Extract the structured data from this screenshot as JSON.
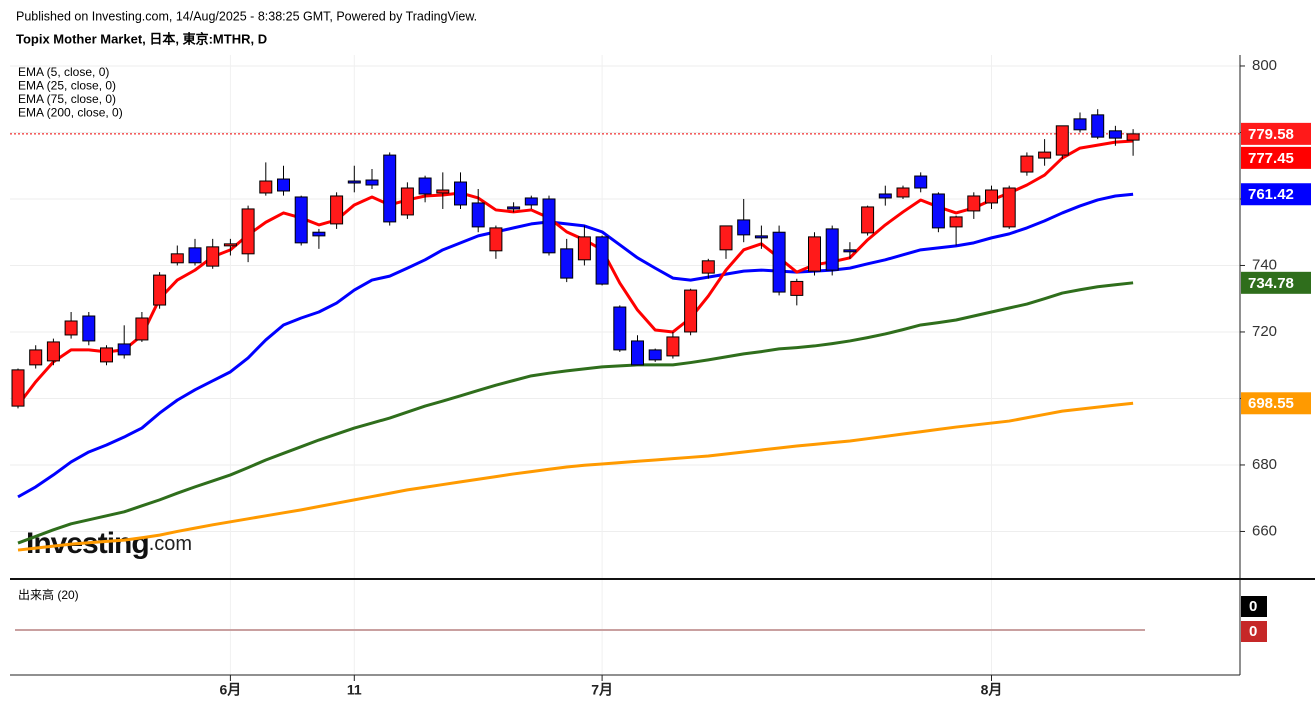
{
  "chart_data": {
    "type": "candlestick",
    "header": "Published on Investing.com, 14/Aug/2025 - 8:38:25 GMT, Powered by TradingView.",
    "title": "Topix Mother Market, 日本, 東京:MTHR, D",
    "watermark_main": "Investing",
    "watermark_suffix": ".com",
    "categories": [
      null,
      null,
      null,
      null,
      null,
      null,
      null,
      null,
      null,
      null,
      null,
      null,
      "6月",
      null,
      null,
      null,
      null,
      null,
      null,
      "11",
      null,
      null,
      null,
      null,
      null,
      null,
      null,
      null,
      null,
      null,
      null,
      null,
      null,
      "7月",
      null,
      null,
      null,
      null,
      null,
      null,
      null,
      null,
      null,
      null,
      null,
      null,
      null,
      null,
      null,
      null,
      null,
      null,
      null,
      null,
      null,
      "8月",
      null,
      null,
      null,
      null,
      null,
      null,
      null,
      null
    ],
    "open": [
      697.7,
      710.1,
      711.3,
      719.1,
      724.8,
      711,
      716.4,
      717.6,
      728.1,
      740.8,
      745.3,
      739.8,
      745.9,
      743.5,
      761.8,
      766,
      760.6,
      750,
      752.5,
      765.4,
      765.7,
      773.2,
      755.2,
      766.3,
      761.8,
      765.1,
      758.8,
      744.4,
      757.6,
      760.3,
      760,
      745,
      741.7,
      748.6,
      727.5,
      717.3,
      714.6,
      712.8,
      720,
      737.7,
      744.7,
      753.7,
      748.9,
      750,
      731,
      738.3,
      751,
      744.7,
      749.8,
      761.5,
      760.6,
      766.9,
      761.5,
      751.6,
      756.4,
      758.8,
      751.6,
      768.1,
      772.3,
      773.2,
      784.1,
      785.3,
      780.5,
      777.7
    ],
    "high": [
      709,
      716,
      718,
      726,
      726,
      716,
      722,
      726,
      738,
      746,
      748,
      748,
      748,
      758,
      771,
      770,
      761,
      751,
      762,
      770,
      769,
      774,
      765,
      767,
      768,
      768,
      763,
      752,
      759,
      761,
      761,
      748,
      752,
      749,
      728,
      719,
      715,
      720,
      733,
      742,
      752,
      760,
      752,
      752,
      736,
      750,
      752,
      747,
      758,
      764,
      764,
      768,
      762,
      755,
      762,
      764,
      764,
      774,
      778,
      782,
      786,
      787,
      782,
      781
    ],
    "low": [
      697,
      709,
      710,
      718,
      716,
      710,
      712,
      717,
      727,
      740,
      740,
      739,
      743,
      741,
      761,
      761,
      746,
      745,
      751,
      762,
      763,
      752,
      754,
      759,
      757,
      757,
      750,
      742,
      756,
      757,
      743,
      735,
      740,
      734,
      714,
      710,
      711,
      712,
      719,
      736,
      742,
      747,
      745,
      731,
      728,
      737,
      737,
      742,
      749,
      758,
      760,
      762,
      750,
      746,
      754,
      757,
      751,
      767,
      770,
      772,
      780,
      778,
      776,
      773
    ],
    "close": [
      708.6,
      714.6,
      717,
      723.3,
      717.3,
      715.2,
      713.1,
      724.2,
      737.1,
      743.5,
      740.8,
      745.6,
      746.5,
      757,
      765.4,
      762.4,
      746.8,
      748.9,
      760.9,
      764.8,
      764.2,
      753.1,
      763.3,
      761.5,
      762.7,
      758.2,
      751.6,
      751.3,
      757,
      758.2,
      743.8,
      736.2,
      748.6,
      734.4,
      714.6,
      710.1,
      711.6,
      718.5,
      732.6,
      741.4,
      751.9,
      749.2,
      748.3,
      732,
      735.2,
      748.6,
      738.6,
      744.1,
      757.6,
      760.3,
      763.3,
      763.3,
      751.3,
      754.6,
      760.9,
      762.7,
      763.3,
      772.9,
      774.1,
      782,
      780.8,
      778.6,
      778.3,
      779.58
    ],
    "up_color": "#ff1a1a",
    "down_color": "#0a0aff",
    "series": [
      {
        "name": "EMA (5, close, 0)",
        "color": "#ff0000",
        "values": [
          698,
          705,
          711,
          714.6,
          714.6,
          714,
          714.6,
          719,
          730,
          735.6,
          738.6,
          742.6,
          744.7,
          749.2,
          753,
          755.8,
          754.3,
          752.2,
          753.7,
          758.2,
          760.6,
          758.2,
          759.7,
          760.9,
          761.2,
          761.8,
          760.3,
          756.7,
          756.1,
          756.7,
          754.3,
          750.1,
          747.7,
          744.7,
          734.7,
          726.6,
          720.6,
          720,
          724.2,
          730.8,
          738.6,
          744.7,
          746.5,
          742.3,
          738,
          740.2,
          741.1,
          742.3,
          747.7,
          752.2,
          756.1,
          759.7,
          757.6,
          755.8,
          757.3,
          759.7,
          761.8,
          764.2,
          767.2,
          772.3,
          775.3,
          776.2,
          777.1,
          777.45
        ]
      },
      {
        "name": "EMA (25, close, 0)",
        "color": "#0000ff",
        "values": [
          670.4,
          673.4,
          677,
          680.9,
          683.9,
          686,
          688.4,
          691.1,
          695.6,
          699.5,
          702.6,
          705.3,
          708,
          712.2,
          717.6,
          722.1,
          724.2,
          726,
          728.7,
          732.6,
          735.6,
          736.8,
          739.2,
          741.7,
          744.7,
          746.8,
          748.9,
          750.1,
          751.3,
          752.5,
          753.1,
          752.5,
          751.9,
          750.1,
          746.2,
          742.3,
          739.2,
          736.2,
          735.6,
          736.5,
          737.4,
          738.3,
          738.6,
          738.3,
          738,
          738.3,
          738.6,
          739.2,
          740.5,
          741.7,
          743.2,
          744.7,
          745.3,
          745.9,
          746.8,
          748.3,
          749.5,
          751.3,
          753.4,
          755.8,
          757.9,
          759.7,
          760.9,
          761.42
        ]
      },
      {
        "name": "EMA (75, close, 0)",
        "color": "#2f6e1c",
        "values": [
          656.5,
          658.5,
          660.5,
          662.3,
          663.5,
          664.7,
          665.9,
          667.7,
          669.5,
          671.5,
          673.4,
          675.2,
          677,
          679.2,
          681.5,
          683.5,
          685.5,
          687.5,
          689.3,
          691.1,
          692.6,
          694.1,
          695.9,
          697.7,
          699.2,
          700.8,
          702.4,
          704,
          705.4,
          706.8,
          707.6,
          708.3,
          708.9,
          709.5,
          709.8,
          710.1,
          710.1,
          710.1,
          710.8,
          711.6,
          712.5,
          713.4,
          714.1,
          714.9,
          715.3,
          715.8,
          716.5,
          717.3,
          718.3,
          719.4,
          720.7,
          722.1,
          722.8,
          723.6,
          724.8,
          726,
          727.2,
          728.4,
          730,
          731.7,
          732.7,
          733.6,
          734.2,
          734.78
        ]
      },
      {
        "name": "EMA (200, close, 0)",
        "color": "#ff9a00",
        "values": [
          654.4,
          655,
          655.6,
          656.2,
          656.6,
          657,
          657.4,
          658.1,
          658.9,
          660,
          661,
          662,
          662.9,
          663.8,
          664.7,
          665.6,
          666.5,
          667.5,
          668.5,
          669.5,
          670.5,
          671.5,
          672.5,
          673.3,
          674.1,
          674.9,
          675.7,
          676.5,
          677.3,
          678,
          678.7,
          679.4,
          679.9,
          680.3,
          680.7,
          681.1,
          681.5,
          681.9,
          682.3,
          682.7,
          683.3,
          683.9,
          684.5,
          685.1,
          685.7,
          686.2,
          686.7,
          687.2,
          687.9,
          688.6,
          689.3,
          690,
          690.7,
          691.4,
          692,
          692.6,
          693.2,
          694.2,
          695.2,
          696.2,
          696.8,
          697.4,
          698,
          698.55
        ]
      }
    ],
    "ylim": [
      646,
      803
    ],
    "yticks": [
      660,
      680,
      700,
      720,
      740,
      760,
      780,
      800
    ],
    "grid": true,
    "volume_title": "出来高 (20)",
    "volume_last": 0,
    "volume_ma_last": 0
  }
}
